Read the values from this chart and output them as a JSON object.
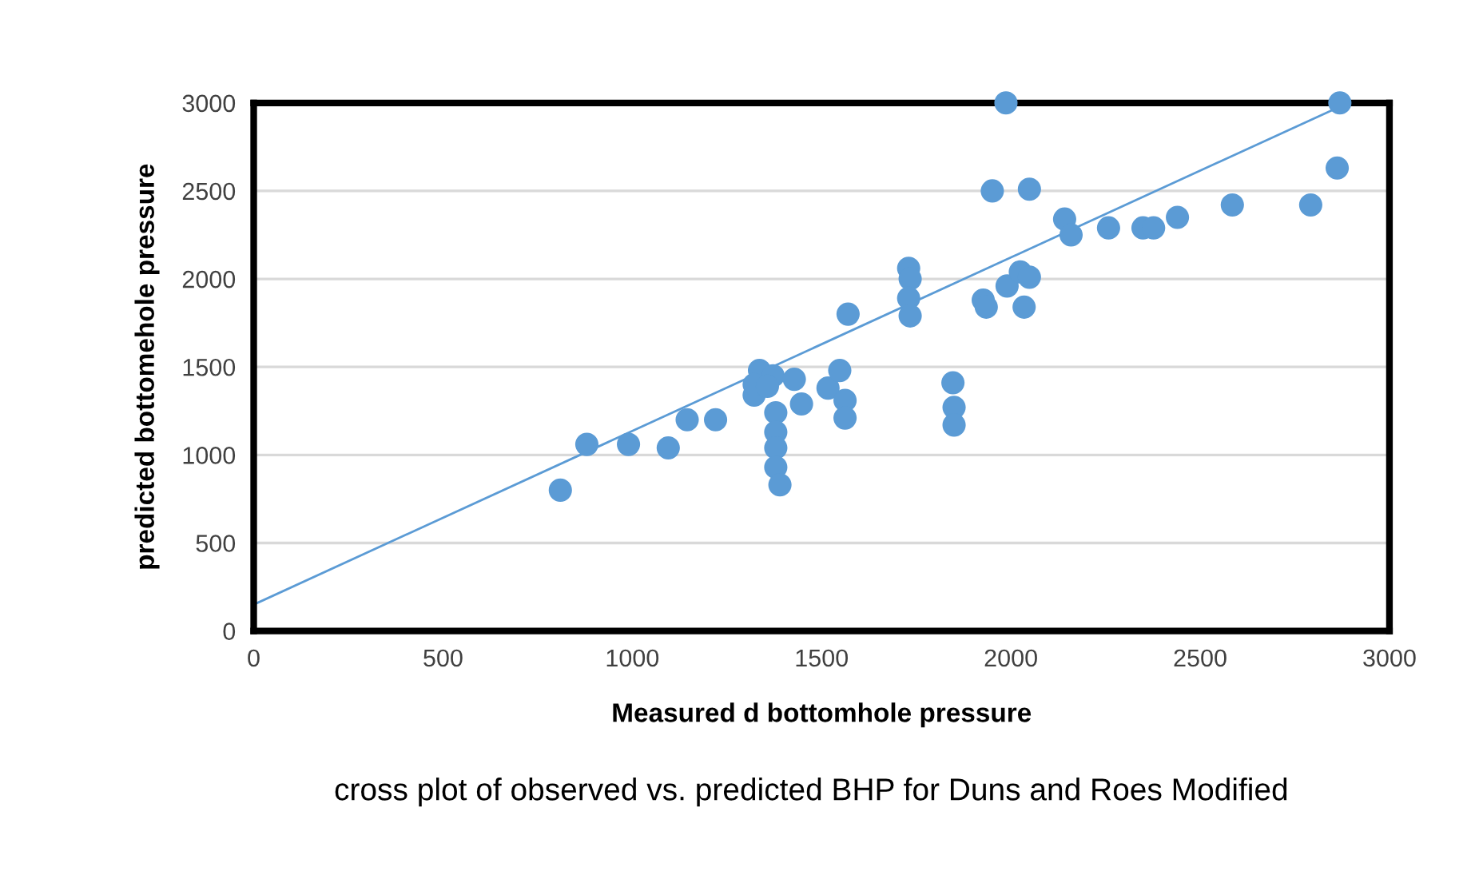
{
  "chart_data": {
    "type": "scatter",
    "xlabel": "Measured d bottomhole pressure",
    "ylabel": "predicted bottomehole pressure",
    "annotations": [
      "cross plot of observed vs. predicted BHP for Duns and Roes Modified"
    ],
    "xlim": [
      0,
      3000
    ],
    "xticks": [
      0,
      500,
      1000,
      1500,
      2000,
      2500,
      3000
    ],
    "ylim": [
      0,
      3000
    ],
    "yticks": [
      0,
      500,
      1000,
      1500,
      2000,
      2500,
      3000
    ],
    "grid": "y",
    "series": [
      {
        "color": "#5b9bd5",
        "marker": "circle",
        "x": [
          810,
          880,
          990,
          1095,
          1145,
          1220,
          1336,
          1372,
          1322,
          1322,
          1357,
          1379,
          1379,
          1379,
          1379,
          1390,
          1428,
          1447,
          1517,
          1548,
          1562,
          1562,
          1570,
          1730,
          1734,
          1730,
          1734,
          1847,
          1850,
          1850,
          1927,
          1935,
          1951,
          1987,
          1990,
          2025,
          2049,
          2035,
          2049,
          2142,
          2159,
          2258,
          2349,
          2377,
          2440,
          2585,
          2792,
          2862,
          2869
        ],
        "values": [
          800,
          1060,
          1060,
          1040,
          1200,
          1200,
          1480,
          1450,
          1340,
          1400,
          1390,
          1240,
          1130,
          1040,
          930,
          830,
          1430,
          1290,
          1380,
          1480,
          1310,
          1210,
          1800,
          2060,
          2000,
          1890,
          1790,
          1410,
          1270,
          1170,
          1880,
          1840,
          2500,
          3000,
          1960,
          2040,
          2010,
          1840,
          2510,
          2340,
          2250,
          2290,
          2290,
          2290,
          2350,
          2420,
          2420,
          2630,
          3000
        ]
      },
      {
        "type": "line",
        "color": "#5b9bd5",
        "marker": "none",
        "line_style": "solid",
        "x": [
          0,
          2880
        ],
        "values": [
          150,
          2990
        ]
      }
    ]
  }
}
